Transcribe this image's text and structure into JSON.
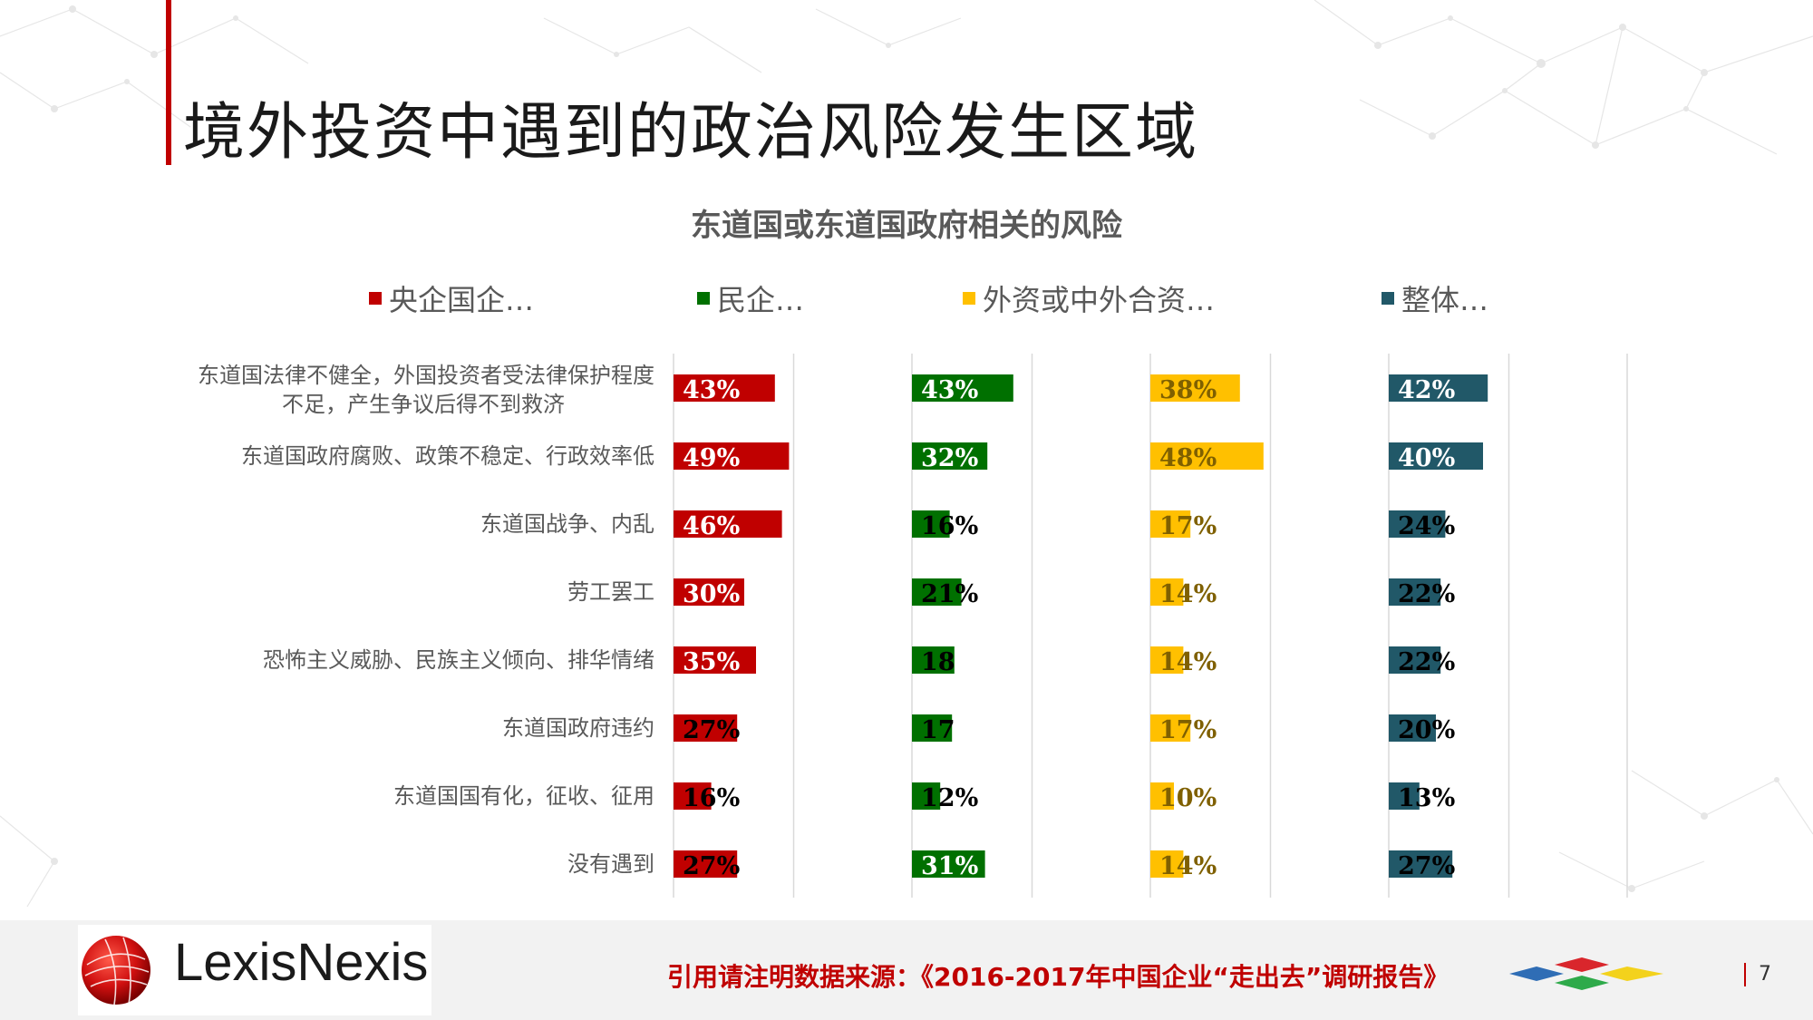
{
  "page": {
    "title": "境外投资中遇到的政治风险发生区域",
    "logo_text": "LexisNexis",
    "source_note": "引用请注明数据来源：《2016-2017年中国企业“走出去”调研报告》",
    "page_number": "7"
  },
  "colors": {
    "accent": "#c00000",
    "central_soe": "#c00000",
    "private": "#007000",
    "foreign": "#ffc000",
    "overall": "#215868"
  },
  "chart_data": {
    "type": "bar",
    "orientation": "horizontal",
    "layout": "small-multiples",
    "title": "东道国或东道国政府相关的风险",
    "categories": [
      "东道国法律不健全，外国投资者受法律保护程度\n不足，产生争议后得不到救济",
      "东道国政府腐败、政策不稳定、行政效率低",
      "东道国战争、内乱",
      "劳工罢工",
      "恐怖主义威胁、民族主义倾向、排华情绪",
      "东道国政府违约",
      "东道国国有化，征收、征用",
      "没有遇到"
    ],
    "series": [
      {
        "name": "央企国企…",
        "color": "#c00000",
        "values": [
          43,
          49,
          46,
          30,
          35,
          27,
          16,
          27
        ]
      },
      {
        "name": "民企…",
        "color": "#007000",
        "values": [
          43,
          32,
          16,
          21,
          18,
          17,
          12,
          31
        ]
      },
      {
        "name": "外资或中外合资…",
        "color": "#ffc000",
        "values": [
          38,
          48,
          17,
          14,
          14,
          17,
          10,
          14
        ]
      },
      {
        "name": "整体…",
        "color": "#215868",
        "values": [
          42,
          40,
          24,
          22,
          22,
          20,
          13,
          27
        ]
      }
    ],
    "value_labels": [
      [
        "43%",
        "49%",
        "46%",
        "30%",
        "35%",
        "27%",
        "16%",
        "27%"
      ],
      [
        "43%",
        "32%",
        "16%",
        "21%",
        "18",
        "17",
        "12%",
        "31%"
      ],
      [
        "38%",
        "48%",
        "17%",
        "14%",
        "14%",
        "17%",
        "10%",
        "14%"
      ],
      [
        "42%",
        "40%",
        "24%",
        "22%",
        "22%",
        "20%",
        "13%",
        "27%"
      ]
    ],
    "unit": "%",
    "xlim": [
      0,
      100
    ],
    "grid": true,
    "legend_position": "top"
  }
}
